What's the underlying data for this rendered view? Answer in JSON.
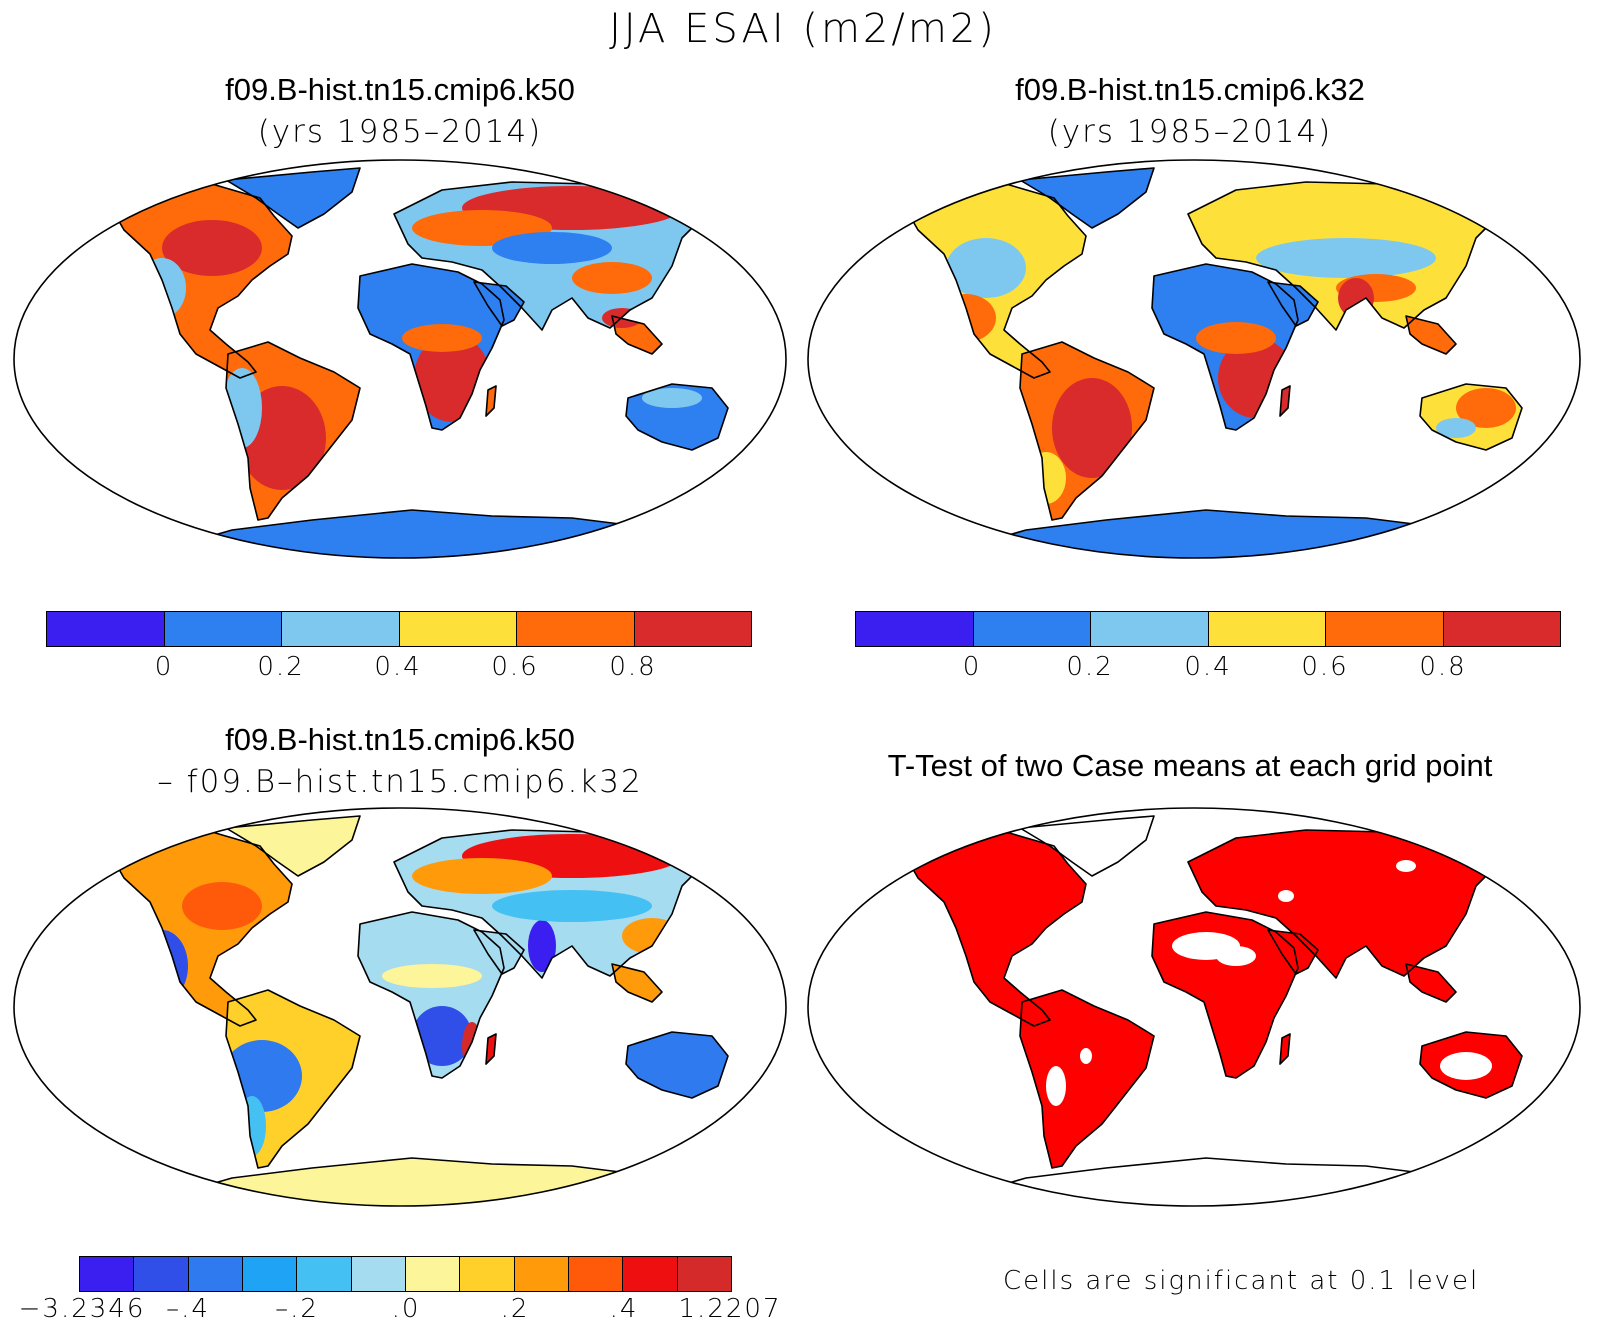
{
  "title": "JJA ESAI (m2/m2)",
  "panels": [
    {
      "title": "f09.B-hist.tn15.cmip6.k50",
      "subtitle": "(yrs 1985–2014)"
    },
    {
      "title": "f09.B-hist.tn15.cmip6.k32",
      "subtitle": "(yrs 1985–2014)"
    },
    {
      "title": "f09.B-hist.tn15.cmip6.k50",
      "subtitle": "– f09.B–hist.tn15.cmip6.k32"
    },
    {
      "title": "T-Test of two Case means at each grid point",
      "subtitle": ""
    }
  ],
  "colorbar_abs": {
    "colors": [
      "#3a1ff0",
      "#2e7ff0",
      "#7ec8f0",
      "#fde13a",
      "#ff6a0a",
      "#d92b2b"
    ],
    "ticks": [
      "0",
      "0.2",
      "0.4",
      "0.6",
      "0.8"
    ]
  },
  "colorbar_diff": {
    "colors": [
      "#3a1ff0",
      "#2f4fe8",
      "#2f7aee",
      "#1fa3f5",
      "#45c0f2",
      "#a6dcf0",
      "#fdf59a",
      "#ffcf2a",
      "#ff9a0a",
      "#ff5a0a",
      "#ee1010",
      "#d42a2a"
    ],
    "ticks": [
      "−3.2346",
      "–.4",
      "–.2",
      ".0",
      ".2",
      ".4",
      "1.2207"
    ]
  },
  "significance": {
    "color": "#ff0000",
    "note": "Cells are significant at 0.1 level"
  }
}
